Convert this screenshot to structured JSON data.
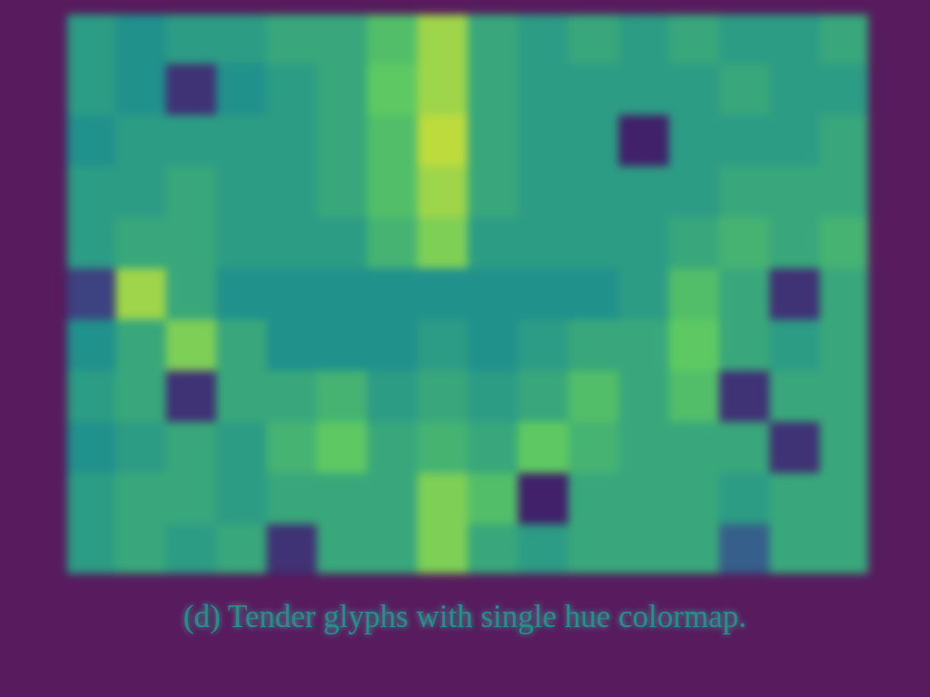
{
  "chart_data": {
    "type": "heatmap",
    "caption": "(d) Tender glyphs with single hue colormap.",
    "tick_labels": false,
    "grid": false,
    "cells": [
      [
        0.55,
        0.5,
        0.55,
        0.55,
        0.6,
        0.6,
        0.7,
        0.85,
        0.6,
        0.55,
        0.6,
        0.55,
        0.6,
        0.55,
        0.55,
        0.6
      ],
      [
        0.55,
        0.5,
        0.15,
        0.5,
        0.55,
        0.6,
        0.75,
        0.85,
        0.6,
        0.55,
        0.55,
        0.55,
        0.55,
        0.6,
        0.55,
        0.55
      ],
      [
        0.5,
        0.55,
        0.55,
        0.55,
        0.55,
        0.6,
        0.7,
        0.9,
        0.6,
        0.55,
        0.55,
        0.1,
        0.55,
        0.55,
        0.55,
        0.6
      ],
      [
        0.55,
        0.55,
        0.6,
        0.55,
        0.55,
        0.6,
        0.7,
        0.85,
        0.6,
        0.55,
        0.55,
        0.55,
        0.55,
        0.6,
        0.6,
        0.6
      ],
      [
        0.55,
        0.6,
        0.6,
        0.55,
        0.55,
        0.55,
        0.65,
        0.8,
        0.55,
        0.55,
        0.55,
        0.55,
        0.6,
        0.65,
        0.6,
        0.65
      ],
      [
        0.2,
        0.85,
        0.6,
        0.5,
        0.5,
        0.5,
        0.5,
        0.5,
        0.5,
        0.5,
        0.5,
        0.55,
        0.7,
        0.6,
        0.15,
        0.6
      ],
      [
        0.5,
        0.6,
        0.8,
        0.6,
        0.5,
        0.5,
        0.5,
        0.55,
        0.5,
        0.55,
        0.6,
        0.6,
        0.75,
        0.6,
        0.55,
        0.6
      ],
      [
        0.55,
        0.6,
        0.15,
        0.6,
        0.6,
        0.65,
        0.55,
        0.6,
        0.55,
        0.6,
        0.7,
        0.6,
        0.7,
        0.15,
        0.6,
        0.6
      ],
      [
        0.5,
        0.55,
        0.6,
        0.55,
        0.65,
        0.75,
        0.6,
        0.65,
        0.6,
        0.75,
        0.65,
        0.6,
        0.6,
        0.6,
        0.15,
        0.6
      ],
      [
        0.55,
        0.6,
        0.6,
        0.55,
        0.6,
        0.6,
        0.6,
        0.8,
        0.7,
        0.1,
        0.6,
        0.6,
        0.6,
        0.55,
        0.6,
        0.6
      ],
      [
        0.55,
        0.6,
        0.55,
        0.6,
        0.15,
        0.6,
        0.6,
        0.8,
        0.6,
        0.55,
        0.6,
        0.6,
        0.6,
        0.3,
        0.6,
        0.6
      ]
    ]
  }
}
